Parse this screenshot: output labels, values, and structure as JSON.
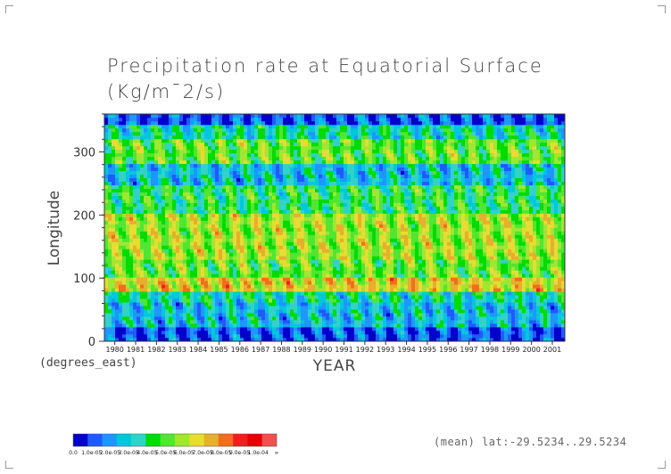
{
  "chart_data": {
    "type": "heatmap",
    "title_line1": "Precipitation rate at Equatorial Surface",
    "title_line2": "(Kg/m¯2/s)",
    "xlabel": "YEAR",
    "ylabel": "Longitude",
    "ylabel_units": "(degrees_east)",
    "x_ticks": [
      "1980",
      "1981",
      "1982",
      "1983",
      "1984",
      "1985",
      "1986",
      "1987",
      "1988",
      "1989",
      "1990",
      "1991",
      "1992",
      "1993",
      "1994",
      "1995",
      "1996",
      "1997",
      "1998",
      "1999",
      "2000",
      "2001"
    ],
    "y_ticks": [
      0,
      100,
      200,
      300
    ],
    "ylim": [
      0,
      360
    ],
    "xlim": [
      1979.5,
      2001.6
    ],
    "colorbar": {
      "colors": [
        "#0000cc",
        "#1e5aff",
        "#1e96ff",
        "#00c8dc",
        "#32d2c8",
        "#00dc00",
        "#50e632",
        "#a0e632",
        "#e6dc32",
        "#e6af2d",
        "#f06e1e",
        "#f01e1e",
        "#e60000",
        "#f05050"
      ],
      "labels": [
        "0.0",
        "1.0e-05",
        "2.0e-05",
        "3.0e-05",
        "4.0e-05",
        "5.0e-05",
        "6.0e-05",
        "7.0e-05",
        "8.0e-05",
        "9.0e-05",
        "1.0e-04",
        "∞"
      ]
    },
    "bands": [
      {
        "lon_from": 0,
        "lon_to": 20,
        "level": 1
      },
      {
        "lon_from": 20,
        "lon_to": 60,
        "level": 3
      },
      {
        "lon_from": 60,
        "lon_to": 80,
        "level": 4
      },
      {
        "lon_from": 80,
        "lon_to": 100,
        "level": 8
      },
      {
        "lon_from": 100,
        "lon_to": 130,
        "level": 6
      },
      {
        "lon_from": 130,
        "lon_to": 200,
        "level": 7
      },
      {
        "lon_from": 200,
        "lon_to": 250,
        "level": 5
      },
      {
        "lon_from": 250,
        "lon_to": 280,
        "level": 3
      },
      {
        "lon_from": 280,
        "lon_to": 320,
        "level": 6
      },
      {
        "lon_from": 320,
        "lon_to": 345,
        "level": 4
      },
      {
        "lon_from": 345,
        "lon_to": 360,
        "level": 1
      }
    ]
  },
  "footer": {
    "note": "(mean) lat:-29.5234..29.5234"
  }
}
